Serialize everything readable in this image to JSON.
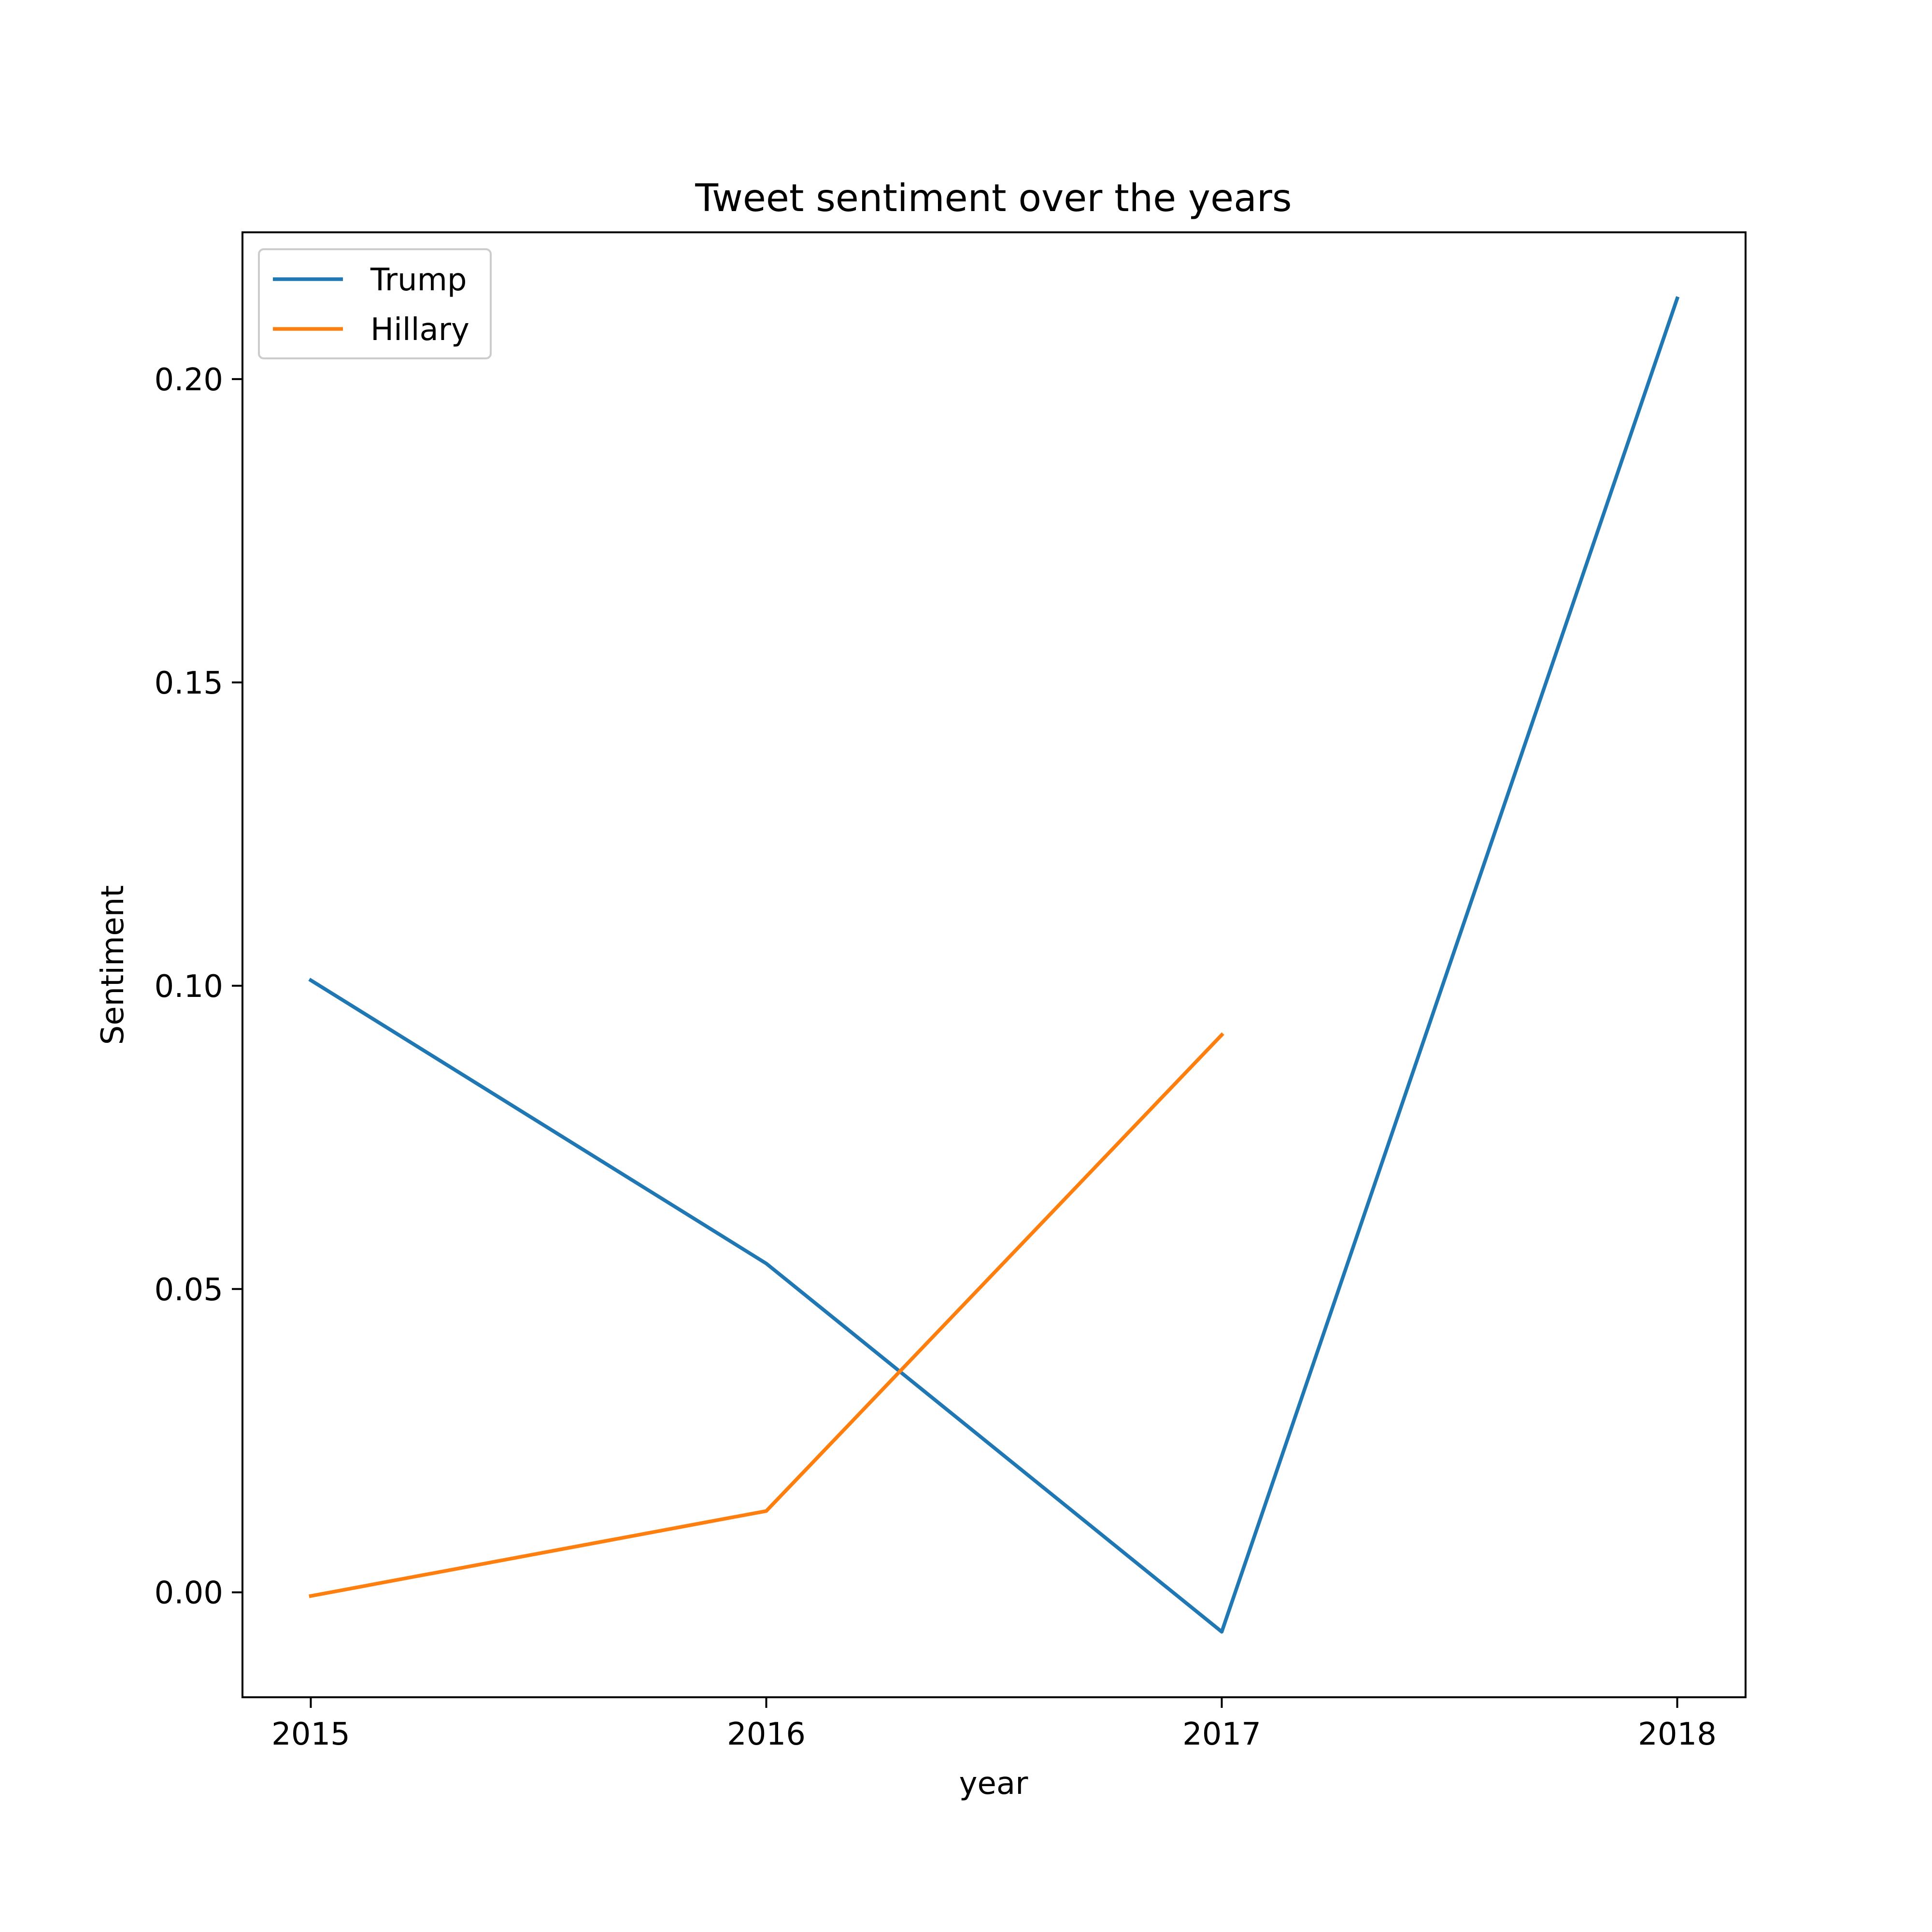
{
  "chart_data": {
    "type": "line",
    "title": "Tweet sentiment over the years",
    "xlabel": "year",
    "ylabel": "Sentiment",
    "x": [
      2015,
      2016,
      2017,
      2018
    ],
    "x_tick_labels": [
      "2015",
      "2016",
      "2017",
      "2018"
    ],
    "xlim": [
      2014.85,
      2018.15
    ],
    "y_ticks": [
      0.0,
      0.05,
      0.1,
      0.15,
      0.2
    ],
    "y_tick_labels": [
      "0.00",
      "0.05",
      "0.10",
      "0.15",
      "0.20"
    ],
    "ylim": [
      -0.0173,
      0.2242
    ],
    "grid": false,
    "legend_position": "upper-left",
    "series": [
      {
        "name": "Trump",
        "color": "#1f77b4",
        "x": [
          2015,
          2016,
          2017,
          2018
        ],
        "values": [
          0.1009,
          0.0542,
          -0.0065,
          0.2133
        ]
      },
      {
        "name": "Hillary",
        "color": "#ff7f0e",
        "x": [
          2015,
          2016,
          2017
        ],
        "values": [
          -0.0006,
          0.0134,
          0.0919
        ]
      }
    ]
  }
}
